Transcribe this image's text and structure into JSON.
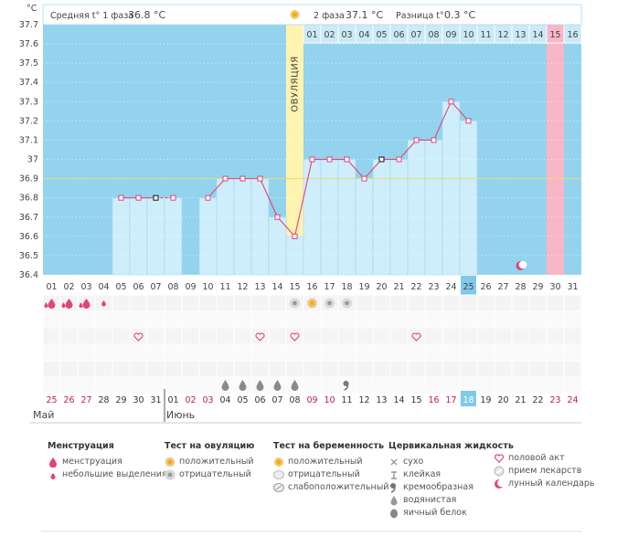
{
  "header": {
    "unit": "°C",
    "phase1_label": "Средняя t° 1 фаза",
    "phase1_value": "36.8 °C",
    "phase2_label": "2 фаза",
    "phase2_value": "37.1 °C",
    "diff_label": "Разница t°",
    "diff_value": "0.3 °C"
  },
  "chart_data": {
    "type": "line",
    "ylim": [
      36.4,
      37.7
    ],
    "yticks": [
      "37.7",
      "37.6",
      "37.5",
      "37.4",
      "37.3",
      "37.2",
      "37.1",
      "37",
      "36.9",
      "36.8",
      "36.7",
      "36.6",
      "36.5",
      "36.4"
    ],
    "coverline": 36.9,
    "ovulation_label": "ОВУЛЯЦИЯ",
    "ovulation_day": 15,
    "cycle_days": [
      "01",
      "02",
      "03",
      "04",
      "05",
      "06",
      "07",
      "08",
      "09",
      "10",
      "11",
      "12",
      "13",
      "14",
      "15",
      "16",
      "17",
      "18",
      "19",
      "20",
      "21",
      "22",
      "23",
      "24",
      "25",
      "26",
      "27",
      "28",
      "29",
      "30",
      "31"
    ],
    "phase2_days": [
      "01",
      "02",
      "03",
      "04",
      "05",
      "06",
      "07",
      "08",
      "09",
      "10",
      "11",
      "12",
      "13",
      "14",
      "15",
      "16"
    ],
    "period_day_index": 14,
    "highlight_cycle_day": 25,
    "temperatures": [
      null,
      null,
      null,
      null,
      36.8,
      36.8,
      36.8,
      36.8,
      null,
      36.8,
      36.9,
      36.9,
      36.9,
      36.7,
      36.6,
      37.0,
      37.0,
      37.0,
      36.9,
      37.0,
      37.0,
      37.1,
      37.1,
      37.3,
      37.2,
      null,
      null,
      null,
      null,
      null,
      null
    ],
    "dashed_segments": [
      [
        6,
        7
      ]
    ],
    "black_markers": [
      6,
      19
    ],
    "dates": [
      "25",
      "26",
      "27",
      "28",
      "29",
      "30",
      "31",
      "01",
      "02",
      "03",
      "04",
      "05",
      "06",
      "07",
      "08",
      "09",
      "10",
      "11",
      "12",
      "13",
      "14",
      "15",
      "16",
      "17",
      "18",
      "19",
      "20",
      "21",
      "22",
      "23",
      "24"
    ],
    "date_colors": [
      "#c2185b",
      "#c2185b",
      "#c2185b",
      "#333",
      "#333",
      "#333",
      "#333",
      "#333",
      "#c2185b",
      "#c2185b",
      "#333",
      "#333",
      "#333",
      "#333",
      "#333",
      "#c2185b",
      "#c2185b",
      "#333",
      "#333",
      "#333",
      "#333",
      "#333",
      "#c2185b",
      "#c2185b",
      "#fff",
      "#333",
      "#333",
      "#333",
      "#333",
      "#c2185b",
      "#c2185b"
    ],
    "today_index": 24,
    "months": [
      {
        "name": "Май",
        "index": 0
      },
      {
        "name": "Июнь",
        "index": 7
      }
    ],
    "moon_day_index": 27,
    "menstruation": [
      {
        "day": 0,
        "kind": "heavy"
      },
      {
        "day": 1,
        "kind": "heavy"
      },
      {
        "day": 2,
        "kind": "heavy"
      },
      {
        "day": 3,
        "kind": "light"
      }
    ],
    "ovulation_tests": [
      {
        "day": 14,
        "kind": "negative"
      },
      {
        "day": 15,
        "kind": "positive"
      },
      {
        "day": 16,
        "kind": "negative"
      },
      {
        "day": 17,
        "kind": "negative"
      }
    ],
    "intercourse": [
      5,
      12,
      14,
      21
    ],
    "mucus": [
      {
        "day": 10,
        "kind": "watery"
      },
      {
        "day": 11,
        "kind": "watery"
      },
      {
        "day": 12,
        "kind": "watery"
      },
      {
        "day": 13,
        "kind": "watery"
      },
      {
        "day": 14,
        "kind": "watery"
      },
      {
        "day": 17,
        "kind": "creamy"
      }
    ]
  },
  "legend": {
    "menstruation": {
      "title": "Менструация",
      "items": [
        "менструация",
        "небольшие выделения"
      ]
    },
    "ovulation_test": {
      "title": "Тест на овуляцию",
      "items": [
        "положительный",
        "отрицательный"
      ]
    },
    "pregnancy_test": {
      "title": "Тест на беременность",
      "items": [
        "положительный",
        "отрицательный",
        "слабоположительный"
      ]
    },
    "cervical_fluid": {
      "title": "Цервикальная жидкость",
      "items": [
        "сухо",
        "клейкая",
        "кремообразная",
        "водянистая",
        "яичный белок"
      ]
    },
    "other": {
      "items": [
        "половой акт",
        "прием лекарств",
        "лунный календарь"
      ]
    }
  },
  "colors": {
    "sky": "#93d3ee",
    "bar": "#cfeefc",
    "bar_edge": "#9fd6f1",
    "line": "#e0457b",
    "ovulation": "#fff3b0",
    "period": "#f8b6c8",
    "coverline": "#eadb6f",
    "today": "#7fc9ea"
  }
}
